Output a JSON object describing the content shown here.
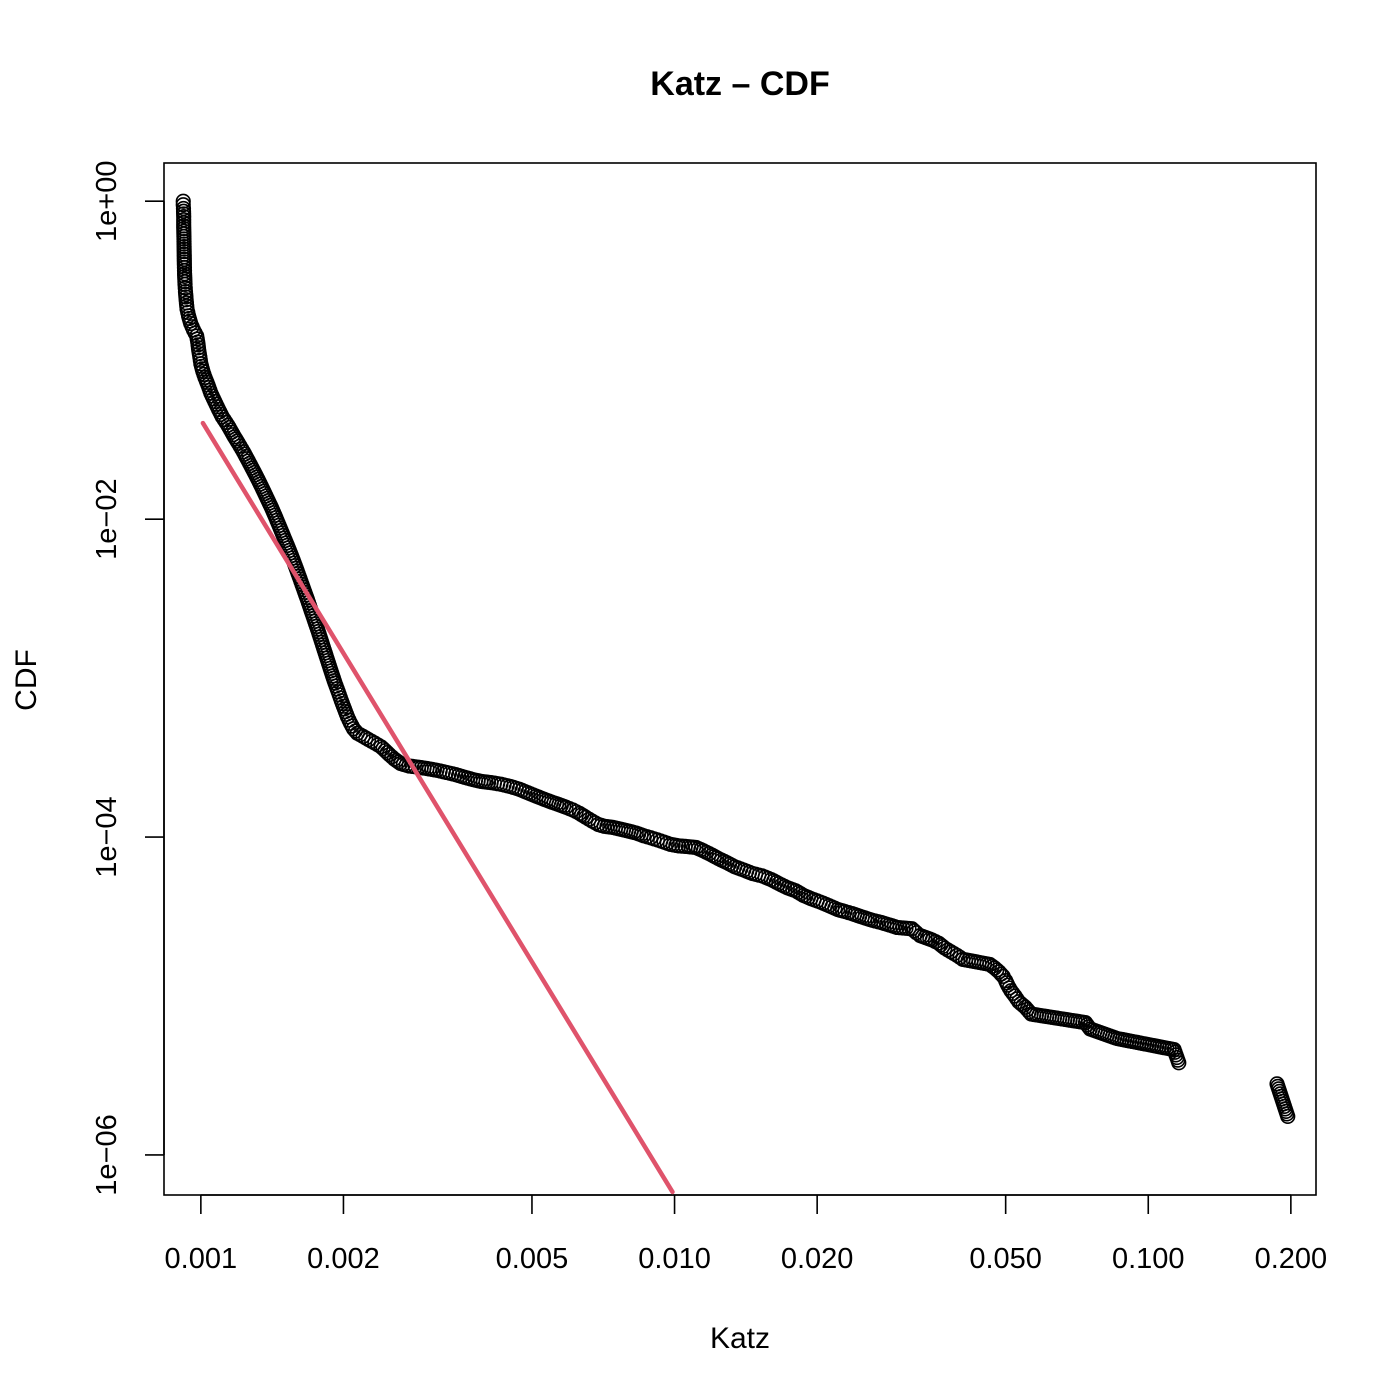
{
  "colors": {
    "points": "#000000",
    "fit_line": "#DF536B"
  },
  "chart_data": {
    "type": "scatter",
    "title": "Katz – CDF",
    "xlabel": "Katz",
    "ylabel": "CDF",
    "x_scale": "log",
    "y_scale": "log",
    "xlim": [
      0.000836,
      0.226
    ],
    "ylim": [
      5.6e-07,
      1.74
    ],
    "x_ticks": [
      0.001,
      0.002,
      0.005,
      0.01,
      0.02,
      0.05,
      0.1,
      0.2
    ],
    "x_tick_labels": [
      "0.001",
      "0.002",
      "0.005",
      "0.010",
      "0.020",
      "0.050",
      "0.100",
      "0.200"
    ],
    "y_ticks": [
      1,
      0.01,
      0.0001,
      1e-06
    ],
    "y_tick_labels": [
      "1e+00",
      "1e−02",
      "1e−04",
      "1e−06"
    ],
    "grid": false,
    "series": [
      {
        "role": "empirical CDF (open circles)",
        "points": [
          [
            0.000918,
            1.0
          ],
          [
            0.000918,
            0.95
          ],
          [
            0.000919,
            0.9
          ],
          [
            0.00092,
            0.8
          ],
          [
            0.00092,
            0.7
          ],
          [
            0.000921,
            0.6
          ],
          [
            0.000922,
            0.5
          ],
          [
            0.000923,
            0.4
          ],
          [
            0.000924,
            0.35
          ],
          [
            0.000926,
            0.3
          ],
          [
            0.000928,
            0.27
          ],
          [
            0.000931,
            0.24
          ],
          [
            0.000935,
            0.21
          ],
          [
            0.000942,
            0.19
          ],
          [
            0.000952,
            0.17
          ],
          [
            0.000965,
            0.155
          ],
          [
            0.00098,
            0.142
          ],
          [
            0.000985,
            0.13
          ],
          [
            0.00099,
            0.115
          ],
          [
            0.000995,
            0.105
          ],
          [
            0.001,
            0.095
          ],
          [
            0.00101,
            0.085
          ],
          [
            0.00102,
            0.078
          ],
          [
            0.001035,
            0.07
          ],
          [
            0.00105,
            0.062
          ],
          [
            0.00107,
            0.055
          ],
          [
            0.00109,
            0.049
          ],
          [
            0.00111,
            0.044
          ],
          [
            0.00114,
            0.039
          ],
          [
            0.00117,
            0.034
          ],
          [
            0.0012,
            0.03
          ],
          [
            0.00123,
            0.0265
          ],
          [
            0.00126,
            0.0232
          ],
          [
            0.00129,
            0.0203
          ],
          [
            0.00132,
            0.0178
          ],
          [
            0.00135,
            0.0155
          ],
          [
            0.00138,
            0.0135
          ],
          [
            0.00141,
            0.0118
          ],
          [
            0.00144,
            0.0102
          ],
          [
            0.00147,
            0.0088
          ],
          [
            0.0015,
            0.0076
          ],
          [
            0.00153,
            0.0066
          ],
          [
            0.00156,
            0.0057
          ],
          [
            0.00159,
            0.0049
          ],
          [
            0.00162,
            0.0042
          ],
          [
            0.00165,
            0.0036
          ],
          [
            0.00168,
            0.0031
          ],
          [
            0.00171,
            0.00265
          ],
          [
            0.00174,
            0.00228
          ],
          [
            0.00177,
            0.00196
          ],
          [
            0.0018,
            0.00168
          ],
          [
            0.00183,
            0.00144
          ],
          [
            0.00186,
            0.00124
          ],
          [
            0.00189,
            0.00107
          ],
          [
            0.00192,
            0.00093
          ],
          [
            0.00195,
            0.00082
          ],
          [
            0.00198,
            0.00072
          ],
          [
            0.00201,
            0.00064
          ],
          [
            0.00204,
            0.00057
          ],
          [
            0.00207,
            0.00052
          ],
          [
            0.0021,
            0.00048
          ],
          [
            0.00214,
            0.00045
          ],
          [
            0.0022,
            0.00043
          ],
          [
            0.00226,
            0.00041
          ],
          [
            0.00233,
            0.00039
          ],
          [
            0.0024,
            0.00037
          ],
          [
            0.00245,
            0.00035
          ],
          [
            0.0025,
            0.00033
          ],
          [
            0.00256,
            0.00031
          ],
          [
            0.00264,
            0.00029
          ],
          [
            0.00275,
            0.00028
          ],
          [
            0.00288,
            0.000275
          ],
          [
            0.003,
            0.00027
          ],
          [
            0.00315,
            0.000263
          ],
          [
            0.0033,
            0.000255
          ],
          [
            0.00345,
            0.000247
          ],
          [
            0.0036,
            0.000238
          ],
          [
            0.00375,
            0.00023
          ],
          [
            0.0039,
            0.000224
          ],
          [
            0.0041,
            0.00022
          ],
          [
            0.0043,
            0.000215
          ],
          [
            0.0045,
            0.000208
          ],
          [
            0.0047,
            0.0002
          ],
          [
            0.0049,
            0.00019
          ],
          [
            0.0051,
            0.000181
          ],
          [
            0.0053,
            0.000173
          ],
          [
            0.0055,
            0.000166
          ],
          [
            0.0057,
            0.00016
          ],
          [
            0.0059,
            0.000154
          ],
          [
            0.0061,
            0.000148
          ],
          [
            0.0063,
            0.000141
          ],
          [
            0.0065,
            0.000133
          ],
          [
            0.0067,
            0.000126
          ],
          [
            0.0069,
            0.00012
          ],
          [
            0.0071,
            0.000117
          ],
          [
            0.0074,
            0.000115
          ],
          [
            0.0077,
            0.000112
          ],
          [
            0.008,
            0.000109
          ],
          [
            0.0083,
            0.000106
          ],
          [
            0.0086,
            0.000102
          ],
          [
            0.0089,
            9.9e-05
          ],
          [
            0.0092,
            9.6e-05
          ],
          [
            0.0095,
            9.3e-05
          ],
          [
            0.0098,
            9e-05
          ],
          [
            0.0102,
            8.8e-05
          ],
          [
            0.0107,
            8.7e-05
          ],
          [
            0.0111,
            8.6e-05
          ],
          [
            0.0115,
            8.2e-05
          ],
          [
            0.012,
            7.7e-05
          ],
          [
            0.0124,
            7.3e-05
          ],
          [
            0.0129,
            6.9e-05
          ],
          [
            0.0134,
            6.5e-05
          ],
          [
            0.014,
            6.2e-05
          ],
          [
            0.0146,
            5.9e-05
          ],
          [
            0.0153,
            5.7e-05
          ],
          [
            0.016,
            5.4e-05
          ],
          [
            0.0166,
            5.1e-05
          ],
          [
            0.0173,
            4.8e-05
          ],
          [
            0.018,
            4.6e-05
          ],
          [
            0.0187,
            4.3e-05
          ],
          [
            0.0194,
            4.1e-05
          ],
          [
            0.0203,
            3.9e-05
          ],
          [
            0.0212,
            3.7e-05
          ],
          [
            0.0221,
            3.5e-05
          ],
          [
            0.0229,
            3.4e-05
          ],
          [
            0.0237,
            3.3e-05
          ],
          [
            0.0252,
            3.1e-05
          ],
          [
            0.0261,
            3e-05
          ],
          [
            0.0273,
            2.9e-05
          ],
          [
            0.0284,
            2.8e-05
          ],
          [
            0.0295,
            2.7e-05
          ],
          [
            0.0317,
            2.65e-05
          ],
          [
            0.0324,
            2.5e-05
          ],
          [
            0.033,
            2.4e-05
          ],
          [
            0.035,
            2.25e-05
          ],
          [
            0.0361,
            2.15e-05
          ],
          [
            0.0372,
            2e-05
          ],
          [
            0.0383,
            1.9e-05
          ],
          [
            0.0395,
            1.8e-05
          ],
          [
            0.0406,
            1.7e-05
          ],
          [
            0.0463,
            1.58e-05
          ],
          [
            0.0474,
            1.5e-05
          ],
          [
            0.0484,
            1.42e-05
          ],
          [
            0.0494,
            1.33e-05
          ],
          [
            0.05,
            1.25e-05
          ],
          [
            0.0505,
            1.17e-05
          ],
          [
            0.0513,
            1.08e-05
          ],
          [
            0.0523,
            1e-05
          ],
          [
            0.0533,
            9.2e-06
          ],
          [
            0.055,
            8.5e-06
          ],
          [
            0.0566,
            7.7e-06
          ],
          [
            0.0737,
            6.8e-06
          ],
          [
            0.0754,
            6.2e-06
          ],
          [
            0.086,
            5.4e-06
          ],
          [
            0.1134,
            4.6e-06
          ],
          [
            0.116,
            3.8e-06
          ],
          [
            0.187,
            2.8e-06
          ],
          [
            0.197,
            1.75e-06
          ]
        ]
      },
      {
        "role": "power-law fit (red line)",
        "points": [
          [
            0.00101,
            0.0402
          ],
          [
            0.0099,
            5.85e-07
          ]
        ]
      }
    ]
  }
}
